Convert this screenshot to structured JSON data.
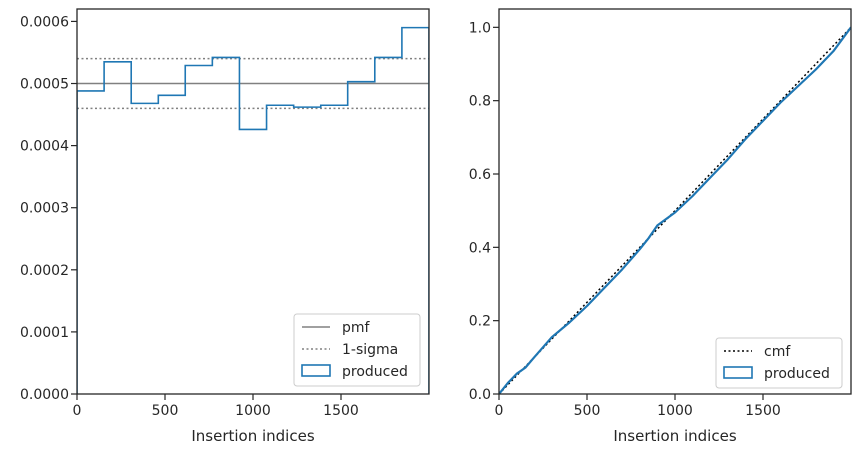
{
  "chart_data": [
    {
      "type": "step",
      "title": "",
      "xlabel": "Insertion indices",
      "ylabel": "",
      "xlim": [
        0,
        2000
      ],
      "ylim": [
        0,
        0.00062
      ],
      "xticks": [
        0,
        500,
        1000,
        1500
      ],
      "xtick_labels": [
        "0",
        "500",
        "1000",
        "1500"
      ],
      "yticks": [
        0,
        0.0001,
        0.0002,
        0.0003,
        0.0004,
        0.0005,
        0.0006
      ],
      "ytick_labels": [
        "0.0000",
        "0.0001",
        "0.0002",
        "0.0003",
        "0.0004",
        "0.0005",
        "0.0006"
      ],
      "grid": false,
      "legend_position": "lower right",
      "reference_lines": [
        {
          "name": "pmf",
          "value": 0.0005,
          "style": "solid",
          "color": "#808080"
        },
        {
          "name": "1-sigma",
          "values": [
            0.00046,
            0.00054
          ],
          "style": "dotted",
          "color": "#808080"
        }
      ],
      "series": [
        {
          "name": "produced",
          "color": "#1f77b4",
          "bin_edges": [
            0,
            154,
            308,
            462,
            615,
            769,
            923,
            1077,
            1231,
            1385,
            1538,
            1692,
            1846,
            2000
          ],
          "values": [
            0.000488,
            0.000535,
            0.000468,
            0.000481,
            0.000529,
            0.000542,
            0.000426,
            0.000465,
            0.000462,
            0.000465,
            0.000503,
            0.000542,
            0.00059
          ]
        }
      ],
      "legend": [
        {
          "label": "pmf",
          "kind": "line-solid",
          "color": "#808080"
        },
        {
          "label": "1-sigma",
          "kind": "line-dotted",
          "color": "#808080"
        },
        {
          "label": "produced",
          "kind": "patch",
          "color": "#1f77b4"
        }
      ]
    },
    {
      "type": "line",
      "title": "",
      "xlabel": "Insertion indices",
      "ylabel": "",
      "xlim": [
        0,
        2000
      ],
      "ylim": [
        0,
        1.05
      ],
      "xticks": [
        0,
        500,
        1000,
        1500
      ],
      "xtick_labels": [
        "0",
        "500",
        "1000",
        "1500"
      ],
      "yticks": [
        0,
        0.2,
        0.4,
        0.6,
        0.8,
        1.0
      ],
      "ytick_labels": [
        "0.0",
        "0.2",
        "0.4",
        "0.6",
        "0.8",
        "1.0"
      ],
      "grid": false,
      "legend_position": "lower right",
      "series": [
        {
          "name": "cmf",
          "style": "dotted",
          "color": "#000000",
          "x": [
            0,
            2000
          ],
          "y": [
            0,
            1.0
          ]
        },
        {
          "name": "produced",
          "style": "solid",
          "color": "#1f77b4",
          "x": [
            0,
            50,
            100,
            150,
            200,
            300,
            400,
            500,
            600,
            700,
            800,
            850,
            900,
            1000,
            1100,
            1200,
            1300,
            1400,
            1500,
            1600,
            1700,
            1800,
            1900,
            2000
          ],
          "y": [
            0,
            0.03,
            0.055,
            0.072,
            0.1,
            0.155,
            0.195,
            0.24,
            0.29,
            0.34,
            0.395,
            0.425,
            0.46,
            0.495,
            0.54,
            0.59,
            0.64,
            0.695,
            0.745,
            0.795,
            0.84,
            0.885,
            0.935,
            1.0
          ]
        }
      ],
      "legend": [
        {
          "label": "cmf",
          "kind": "line-dotted",
          "color": "#000000"
        },
        {
          "label": "produced",
          "kind": "patch",
          "color": "#1f77b4"
        }
      ]
    }
  ]
}
